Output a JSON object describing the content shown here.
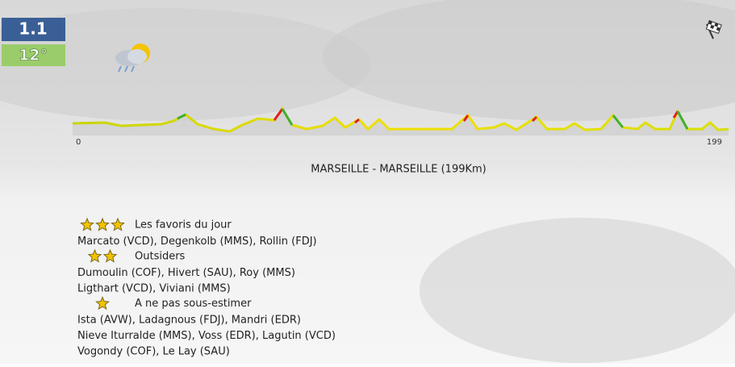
{
  "header": {
    "race_class": "1.1",
    "temperature": "12°"
  },
  "profile": {
    "start_km": 0,
    "end_km": 199
  },
  "stage": {
    "title": "MARSEILLE - MARSEILLE (199Km)"
  },
  "favorites": [
    {
      "stars": 3,
      "label": "Les favoris du jour",
      "riders": [
        "Marcato (VCD), Degenkolb (MMS), Rollin (FDJ)"
      ]
    },
    {
      "stars": 2,
      "label": "Outsiders",
      "riders": [
        "Dumoulin (COF), Hivert (SAU), Roy (MMS)",
        "Ligthart (VCD), Viviani (MMS)"
      ]
    },
    {
      "stars": 1,
      "label": "A ne pas sous-estimer",
      "riders": [
        "Ista (AVW), Ladagnous (FDJ), Mandri (EDR)",
        "Nieve Iturralde (MMS), Voss (EDR), Lagutin (VCD)",
        "Vogondy (COF), Le Lay (SAU)"
      ]
    }
  ]
}
